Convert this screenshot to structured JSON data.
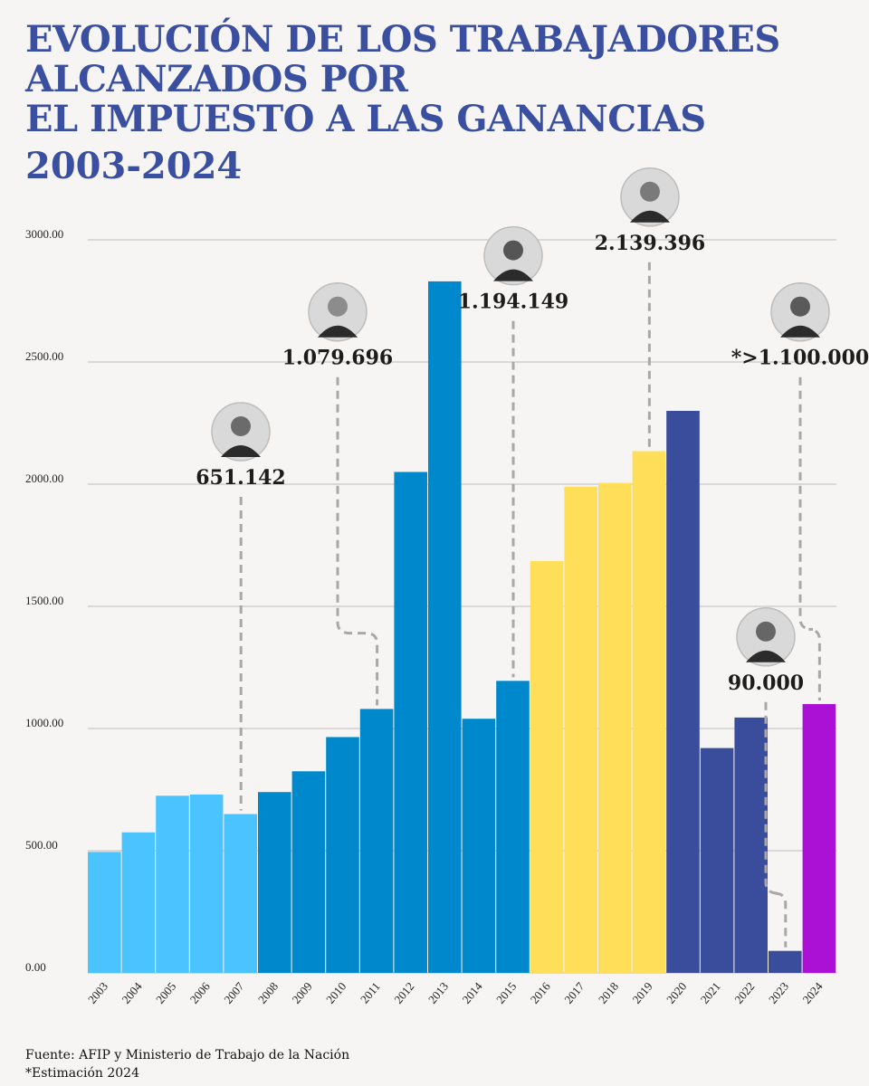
{
  "title_lines": [
    "EVOLUCIÓN DE LOS TRABAJADORES",
    "ALCANZADOS POR",
    "EL IMPUESTO A LAS GANANCIAS"
  ],
  "subtitle": "2003-2024",
  "footer": {
    "source": "Fuente: AFIP y Ministerio de Trabajo de la Nación",
    "note": "*Estimación 2024"
  },
  "chart_data": {
    "type": "bar",
    "title": "",
    "xlabel": "",
    "ylabel": "",
    "ylim": [
      0,
      3000
    ],
    "y_ticks": [
      "0.00",
      "500.00",
      "1000.00",
      "1500.00",
      "2000.00",
      "2500.00",
      "3000.00"
    ],
    "grid": true,
    "categories": [
      "2003",
      "2004",
      "2005",
      "2006",
      "2007",
      "2008",
      "2009",
      "2010",
      "2011",
      "2012",
      "2013",
      "2014",
      "2015",
      "2016",
      "2017",
      "2018",
      "2019",
      "2020",
      "2021",
      "2022",
      "2023",
      "2024"
    ],
    "values": [
      495,
      575,
      725,
      730,
      650,
      740,
      825,
      965,
      1080,
      2050,
      2830,
      1040,
      1195,
      1685,
      1990,
      2005,
      2135,
      2300,
      920,
      1045,
      90,
      1100
    ],
    "colors": [
      "#4bc3ff",
      "#4bc3ff",
      "#4bc3ff",
      "#4bc3ff",
      "#4bc3ff",
      "#0088cc",
      "#0088cc",
      "#0088cc",
      "#0088cc",
      "#0088cc",
      "#0088cc",
      "#0088cc",
      "#0088cc",
      "#ffde59",
      "#ffde59",
      "#ffde59",
      "#ffde59",
      "#3a4c9c",
      "#3a4c9c",
      "#3a4c9c",
      "#3a4c9c",
      "#aa11d4"
    ],
    "annotations": [
      {
        "text": "651.142",
        "category": "2007",
        "avatar": "nestor-kirchner-avatar",
        "label_y": 2000
      },
      {
        "text": "1.079.696",
        "category": "2011",
        "avatar": "cristina-kirchner-avatar-2011",
        "label_y": 2490
      },
      {
        "text": "1.194.149",
        "category": "2015",
        "avatar": "cristina-kirchner-avatar-2015",
        "label_y": 2720
      },
      {
        "text": "2.139.396",
        "category": "2019",
        "avatar": "mauricio-macri-avatar",
        "label_y": 2960
      },
      {
        "text": "90.000",
        "category": "2023",
        "avatar": "alberto-fernandez-avatar",
        "label_y": 1160
      },
      {
        "text": "*>1.100.000",
        "category": "2024",
        "avatar": "javier-milei-avatar",
        "label_y": 2490
      }
    ]
  }
}
